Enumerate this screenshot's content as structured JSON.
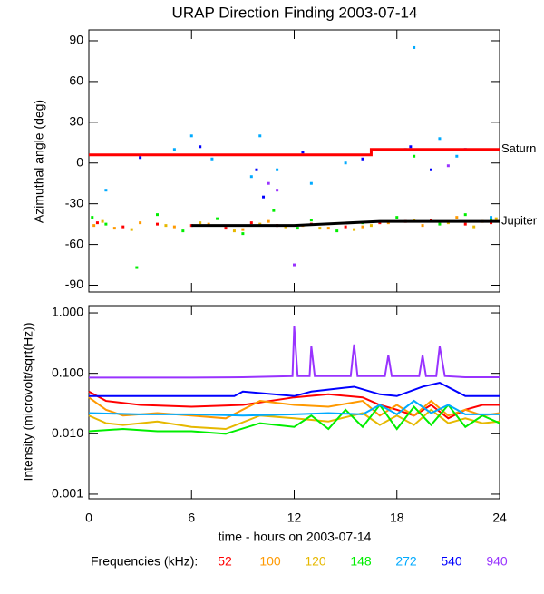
{
  "chart_data": [
    {
      "type": "scatter",
      "title": "URAP Direction Finding  2003-07-14",
      "ylabel": "Azimuthal angle (deg)",
      "xlim": [
        0,
        24
      ],
      "xticks": [
        0,
        6,
        12,
        18,
        24
      ],
      "ylim": [
        -95,
        98
      ],
      "yticks": [
        -90,
        -60,
        -30,
        0,
        30,
        60,
        90
      ],
      "lines": [
        {
          "name": "Saturn",
          "color": "#ff0000",
          "x": [
            0,
            16.5,
            16.5,
            24
          ],
          "values": [
            6,
            6,
            10,
            10
          ]
        },
        {
          "name": "Jupiter",
          "color": "#000000",
          "x": [
            6,
            12,
            17,
            24
          ],
          "values": [
            -46,
            -46,
            -43,
            -43
          ]
        }
      ],
      "series": [
        {
          "color": "#ff0000",
          "x": [
            0.5,
            2,
            4,
            6,
            8,
            9.5,
            11,
            13,
            15,
            17,
            18.5,
            20,
            22,
            23.5
          ],
          "values": [
            -44,
            -47,
            -45,
            -46,
            -48,
            -44,
            -46,
            -45,
            -47,
            -44,
            -43,
            -42,
            -45,
            -44
          ]
        },
        {
          "color": "#ff9900",
          "x": [
            0.3,
            1.5,
            3,
            5,
            7,
            9,
            10.5,
            12.5,
            14,
            16,
            17.5,
            19.5,
            21.5,
            23
          ],
          "values": [
            -46,
            -48,
            -44,
            -47,
            -45,
            -49,
            -43,
            -46,
            -48,
            -47,
            -44,
            -46,
            -40,
            -43
          ]
        },
        {
          "color": "#e6b800",
          "x": [
            0.8,
            2.5,
            4.5,
            6.5,
            8.5,
            10,
            11.5,
            13.5,
            15.5,
            16.5,
            19,
            21,
            22.5,
            23.8
          ],
          "values": [
            -43,
            -49,
            -46,
            -44,
            -50,
            -45,
            -47,
            -48,
            -49,
            -46,
            -42,
            -44,
            -47,
            -41
          ]
        },
        {
          "color": "#00ee00",
          "x": [
            0.2,
            1,
            2.8,
            4,
            5.5,
            7.5,
            9,
            10.8,
            12.2,
            13,
            14.5,
            16,
            18,
            19,
            20.5,
            22,
            23.5
          ],
          "values": [
            -40,
            -45,
            -77,
            -38,
            -50,
            -41,
            -52,
            -35,
            -48,
            -42,
            -50,
            -44,
            -40,
            5,
            -45,
            -38,
            -42
          ]
        },
        {
          "color": "#00aaff",
          "x": [
            1,
            5,
            6,
            7.2,
            9.5,
            10,
            11,
            13,
            15,
            18.5,
            19,
            20.5,
            21.5,
            23.5
          ],
          "values": [
            -20,
            10,
            20,
            3,
            -10,
            20,
            -5,
            -15,
            0,
            10,
            85,
            18,
            5,
            -40
          ]
        },
        {
          "color": "#0000ff",
          "x": [
            3,
            6.5,
            9.8,
            10.2,
            12.5,
            16,
            18.8,
            20,
            22
          ],
          "values": [
            4,
            12,
            -5,
            -25,
            8,
            3,
            12,
            -5,
            10
          ]
        },
        {
          "color": "#9933ff",
          "x": [
            10.5,
            12,
            11,
            21
          ],
          "values": [
            -15,
            -75,
            -20,
            -2
          ]
        }
      ]
    },
    {
      "type": "line",
      "log_scale": true,
      "ylabel": "Intensity (microvolt/sqrt(Hz))",
      "xlabel": "time - hours on 2003-07-14",
      "legend_title": "Frequencies (kHz):",
      "xlim": [
        0,
        24
      ],
      "xticks": [
        0,
        6,
        12,
        18,
        24
      ],
      "ylim": [
        0.00084,
        1.32
      ],
      "yticks": [
        {
          "value": 0.001,
          "label": "0.001"
        },
        {
          "value": 0.01,
          "label": "0.010"
        },
        {
          "value": 0.1,
          "label": "0.100"
        },
        {
          "value": 1,
          "label": "1.000"
        }
      ],
      "series": [
        {
          "name": "52",
          "color": "#ff0000",
          "x": [
            0,
            1,
            3,
            6,
            9,
            12,
            14,
            16,
            17,
            18,
            19,
            20,
            21,
            22,
            23,
            24
          ],
          "values": [
            0.05,
            0.035,
            0.03,
            0.028,
            0.03,
            0.04,
            0.045,
            0.04,
            0.03,
            0.025,
            0.02,
            0.03,
            0.018,
            0.025,
            0.03,
            0.03
          ]
        },
        {
          "name": "100",
          "color": "#ff9900",
          "x": [
            0,
            1,
            2,
            4,
            6,
            8,
            10,
            12,
            14,
            16,
            17,
            18,
            19,
            20,
            21,
            22,
            23,
            24
          ],
          "values": [
            0.04,
            0.025,
            0.02,
            0.022,
            0.02,
            0.018,
            0.035,
            0.03,
            0.028,
            0.035,
            0.02,
            0.03,
            0.02,
            0.035,
            0.02,
            0.025,
            0.02,
            0.022
          ]
        },
        {
          "name": "120",
          "color": "#e6b800",
          "x": [
            0,
            1,
            2,
            4,
            6,
            8,
            10,
            12,
            14,
            16,
            17,
            18,
            19,
            20,
            21,
            22,
            23,
            24
          ],
          "values": [
            0.02,
            0.015,
            0.014,
            0.016,
            0.013,
            0.012,
            0.02,
            0.018,
            0.016,
            0.022,
            0.014,
            0.02,
            0.014,
            0.025,
            0.015,
            0.018,
            0.015,
            0.016
          ]
        },
        {
          "name": "148",
          "color": "#00ee00",
          "x": [
            0,
            2,
            4,
            6,
            8,
            10,
            12,
            13,
            14,
            15,
            16,
            17,
            18,
            19,
            20,
            21,
            22,
            23,
            24
          ],
          "values": [
            0.011,
            0.012,
            0.011,
            0.011,
            0.01,
            0.015,
            0.013,
            0.02,
            0.012,
            0.025,
            0.013,
            0.03,
            0.012,
            0.028,
            0.014,
            0.03,
            0.013,
            0.02,
            0.015
          ]
        },
        {
          "name": "272",
          "color": "#00aaff",
          "x": [
            0,
            3,
            6,
            9,
            12,
            14,
            16,
            17,
            18,
            19,
            20,
            21,
            22,
            24
          ],
          "values": [
            0.022,
            0.021,
            0.021,
            0.02,
            0.021,
            0.022,
            0.021,
            0.03,
            0.021,
            0.035,
            0.022,
            0.03,
            0.021,
            0.021
          ]
        },
        {
          "name": "540",
          "color": "#0000ff",
          "x": [
            0,
            3,
            6,
            8.5,
            9,
            12,
            13,
            15.5,
            17,
            18,
            19.5,
            20.5,
            22,
            24
          ],
          "values": [
            0.042,
            0.042,
            0.042,
            0.042,
            0.05,
            0.042,
            0.05,
            0.06,
            0.045,
            0.042,
            0.06,
            0.07,
            0.042,
            0.042
          ]
        },
        {
          "name": "940",
          "color": "#9933ff",
          "x": [
            0,
            3,
            6,
            9,
            11.9,
            12,
            12.2,
            12.9,
            13,
            13.2,
            15.3,
            15.5,
            15.7,
            17.3,
            17.5,
            17.7,
            19.3,
            19.5,
            19.7,
            20.3,
            20.5,
            20.8,
            22,
            24
          ],
          "values": [
            0.085,
            0.085,
            0.085,
            0.086,
            0.09,
            0.6,
            0.09,
            0.09,
            0.28,
            0.09,
            0.09,
            0.3,
            0.09,
            0.09,
            0.2,
            0.09,
            0.09,
            0.2,
            0.09,
            0.09,
            0.28,
            0.09,
            0.086,
            0.086
          ]
        }
      ]
    }
  ]
}
